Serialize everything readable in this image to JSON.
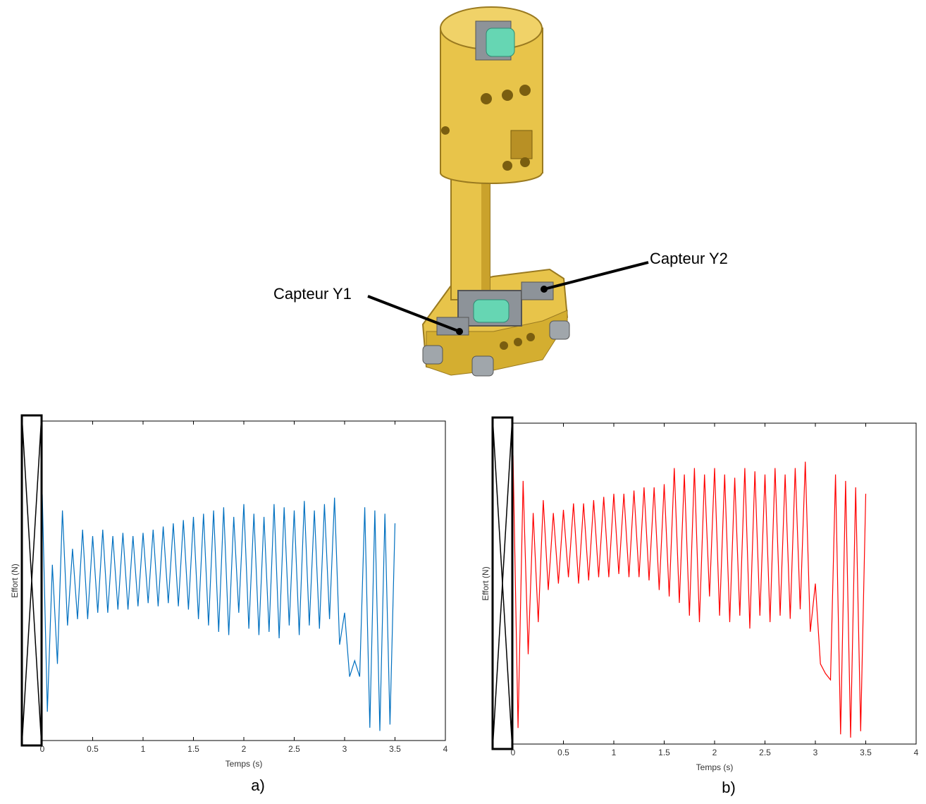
{
  "figure": {
    "callouts": [
      "Capteur Y1",
      "Capteur Y2"
    ]
  },
  "chart_data": [
    {
      "type": "line",
      "caption": "a)",
      "xlabel": "Temps (s)",
      "ylabel": "Effort (N)",
      "xlim": [
        0,
        4
      ],
      "xticks": [
        0,
        0.5,
        1,
        1.5,
        2,
        2.5,
        3,
        3.5,
        4
      ],
      "ylim": [
        0,
        1
      ],
      "x": [
        0,
        0.05,
        0.1,
        0.15,
        0.2,
        0.25,
        0.3,
        0.35,
        0.4,
        0.45,
        0.5,
        0.55,
        0.6,
        0.65,
        0.7,
        0.75,
        0.8,
        0.85,
        0.9,
        0.95,
        1,
        1.05,
        1.1,
        1.15,
        1.2,
        1.25,
        1.3,
        1.35,
        1.4,
        1.45,
        1.5,
        1.55,
        1.6,
        1.65,
        1.7,
        1.75,
        1.8,
        1.85,
        1.9,
        1.95,
        2,
        2.05,
        2.1,
        2.15,
        2.2,
        2.25,
        2.3,
        2.35,
        2.4,
        2.45,
        2.5,
        2.55,
        2.6,
        2.65,
        2.7,
        2.75,
        2.8,
        2.85,
        2.9,
        2.95,
        3,
        3.05,
        3.1,
        3.15,
        3.2,
        3.25,
        3.3,
        3.35,
        3.4,
        3.45,
        3.5
      ],
      "series": [
        {
          "color": "#0070c0",
          "values": [
            0.77,
            0.09,
            0.55,
            0.24,
            0.72,
            0.36,
            0.6,
            0.38,
            0.66,
            0.38,
            0.64,
            0.4,
            0.66,
            0.4,
            0.64,
            0.41,
            0.65,
            0.41,
            0.64,
            0.42,
            0.65,
            0.43,
            0.66,
            0.42,
            0.67,
            0.43,
            0.68,
            0.42,
            0.69,
            0.41,
            0.7,
            0.38,
            0.71,
            0.36,
            0.72,
            0.34,
            0.73,
            0.33,
            0.7,
            0.4,
            0.74,
            0.35,
            0.71,
            0.33,
            0.7,
            0.34,
            0.74,
            0.32,
            0.73,
            0.36,
            0.72,
            0.33,
            0.75,
            0.36,
            0.72,
            0.35,
            0.74,
            0.38,
            0.76,
            0.3,
            0.4,
            0.2,
            0.25,
            0.2,
            0.73,
            0.04,
            0.72,
            0.03,
            0.71,
            0.05,
            0.68
          ]
        }
      ]
    },
    {
      "type": "line",
      "caption": "b)",
      "xlabel": "Temps (s)",
      "ylabel": "Effort (N)",
      "xlim": [
        0,
        4
      ],
      "xticks": [
        0,
        0.5,
        1,
        1.5,
        2,
        2.5,
        3,
        3.5,
        4
      ],
      "ylim": [
        0,
        1
      ],
      "x": [
        0,
        0.05,
        0.1,
        0.15,
        0.2,
        0.25,
        0.3,
        0.35,
        0.4,
        0.45,
        0.5,
        0.55,
        0.6,
        0.65,
        0.7,
        0.75,
        0.8,
        0.85,
        0.9,
        0.95,
        1,
        1.05,
        1.1,
        1.15,
        1.2,
        1.25,
        1.3,
        1.35,
        1.4,
        1.45,
        1.5,
        1.55,
        1.6,
        1.65,
        1.7,
        1.75,
        1.8,
        1.85,
        1.9,
        1.95,
        2,
        2.05,
        2.1,
        2.15,
        2.2,
        2.25,
        2.3,
        2.35,
        2.4,
        2.45,
        2.5,
        2.55,
        2.6,
        2.65,
        2.7,
        2.75,
        2.8,
        2.85,
        2.9,
        2.95,
        3,
        3.05,
        3.1,
        3.15,
        3.2,
        3.25,
        3.3,
        3.35,
        3.4,
        3.45,
        3.5
      ],
      "series": [
        {
          "color": "#ff0000",
          "values": [
            0.9,
            0.05,
            0.82,
            0.28,
            0.72,
            0.38,
            0.76,
            0.48,
            0.72,
            0.5,
            0.73,
            0.52,
            0.75,
            0.5,
            0.75,
            0.51,
            0.76,
            0.52,
            0.77,
            0.52,
            0.78,
            0.53,
            0.78,
            0.52,
            0.79,
            0.52,
            0.8,
            0.51,
            0.8,
            0.48,
            0.81,
            0.46,
            0.86,
            0.44,
            0.84,
            0.4,
            0.86,
            0.38,
            0.84,
            0.46,
            0.86,
            0.4,
            0.84,
            0.38,
            0.83,
            0.4,
            0.86,
            0.36,
            0.85,
            0.4,
            0.84,
            0.38,
            0.86,
            0.4,
            0.84,
            0.39,
            0.86,
            0.42,
            0.88,
            0.35,
            0.5,
            0.25,
            0.22,
            0.2,
            0.84,
            0.03,
            0.82,
            0.02,
            0.8,
            0.04,
            0.78
          ]
        }
      ]
    }
  ]
}
